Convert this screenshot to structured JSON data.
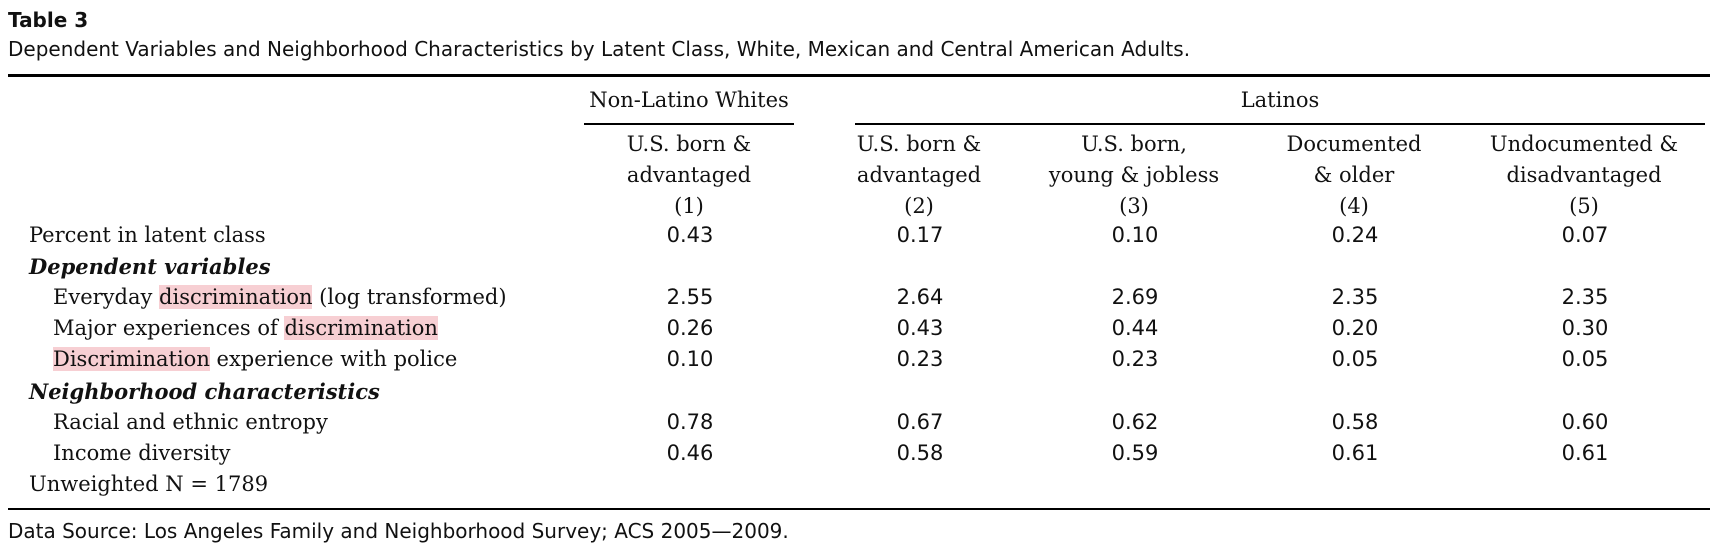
{
  "title": "Table 3",
  "caption": "Dependent Variables and Neighborhood Characteristics by Latent Class, White, Mexican and Central American Adults.",
  "groups": [
    "Non-Latino Whites",
    "Latinos"
  ],
  "columns": [
    {
      "line1": "U.S. born &",
      "line2": "advantaged",
      "num": "(1)"
    },
    {
      "line1": "U.S. born &",
      "line2": "advantaged",
      "num": "(2)"
    },
    {
      "line1": "U.S. born,",
      "line2": "young & jobless",
      "num": "(3)"
    },
    {
      "line1": "Documented",
      "line2": "& older",
      "num": "(4)"
    },
    {
      "line1": "Undocumented &",
      "line2": "disadvantaged",
      "num": "(5)"
    }
  ],
  "rows": {
    "percent": {
      "label": "Percent in latent class",
      "values": [
        "0.43",
        "0.17",
        "0.10",
        "0.24",
        "0.07"
      ]
    },
    "section_dep": {
      "label": "Dependent variables"
    },
    "everyday": {
      "pre": "",
      "hl": "discrimination",
      "pre_word": "Everyday ",
      "post": " (log transformed)",
      "values": [
        "2.55",
        "2.64",
        "2.69",
        "2.35",
        "2.35"
      ]
    },
    "major": {
      "pre": "Major experiences of ",
      "hl": "discrimination",
      "post": "",
      "values": [
        "0.26",
        "0.43",
        "0.44",
        "0.20",
        "0.30"
      ]
    },
    "police": {
      "pre": "",
      "hl": "Discrimination",
      "post": " experience with police",
      "values": [
        "0.10",
        "0.23",
        "0.23",
        "0.05",
        "0.05"
      ]
    },
    "section_neigh": {
      "label": "Neighborhood characteristics"
    },
    "entropy": {
      "label": "Racial and ethnic entropy",
      "values": [
        "0.78",
        "0.67",
        "0.62",
        "0.58",
        "0.60"
      ]
    },
    "income": {
      "label": "Income diversity",
      "values": [
        "0.46",
        "0.58",
        "0.59",
        "0.61",
        "0.61"
      ]
    },
    "n": {
      "label": "Unweighted N = 1789"
    }
  },
  "footnote": "Data Source: Los Angeles Family and Neighborhood Survey; ACS 2005—2009.",
  "colors": {
    "highlight": "#f7cfd3",
    "text": "#111111"
  }
}
